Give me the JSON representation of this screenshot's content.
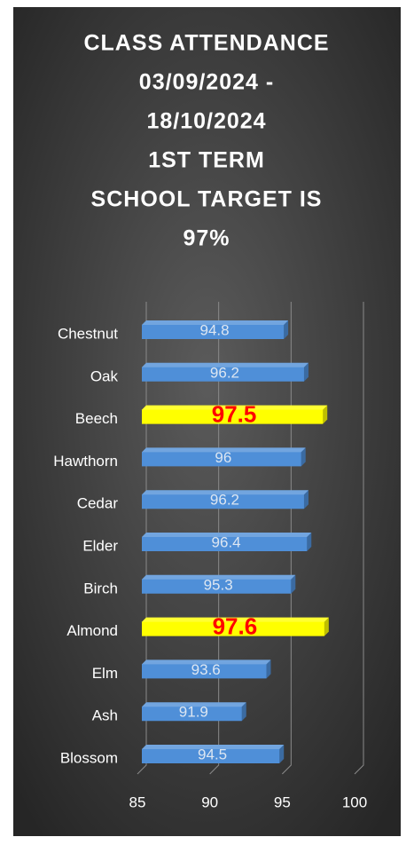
{
  "chart_data": {
    "type": "bar",
    "orientation": "horizontal",
    "title": [
      "CLASS ATTENDANCE",
      "03/09/2024 -",
      "18/10/2024",
      "1ST TERM",
      "SCHOOL TARGET IS",
      "97%"
    ],
    "categories": [
      "Chestnut",
      "Oak",
      "Beech",
      "Hawthorn",
      "Cedar",
      "Elder",
      "Birch",
      "Almond",
      "Elm",
      "Ash",
      "Blossom"
    ],
    "values": [
      94.8,
      96.2,
      97.5,
      96,
      96.2,
      96.4,
      95.3,
      97.6,
      93.6,
      91.9,
      94.5
    ],
    "colors": [
      "#4f8fd8",
      "#4f8fd8",
      "#ffff00",
      "#4f8fd8",
      "#4f8fd8",
      "#4f8fd8",
      "#4f8fd8",
      "#ffff00",
      "#4f8fd8",
      "#4f8fd8",
      "#4f8fd8"
    ],
    "value_label_colors": [
      "#dce6f2",
      "#dce6f2",
      "#ff0000",
      "#dce6f2",
      "#dce6f2",
      "#dce6f2",
      "#dce6f2",
      "#ff0000",
      "#dce6f2",
      "#dce6f2",
      "#dce6f2"
    ],
    "xlim": [
      85,
      100
    ],
    "xticks": [
      85,
      90,
      95,
      100
    ],
    "grid": true
  }
}
